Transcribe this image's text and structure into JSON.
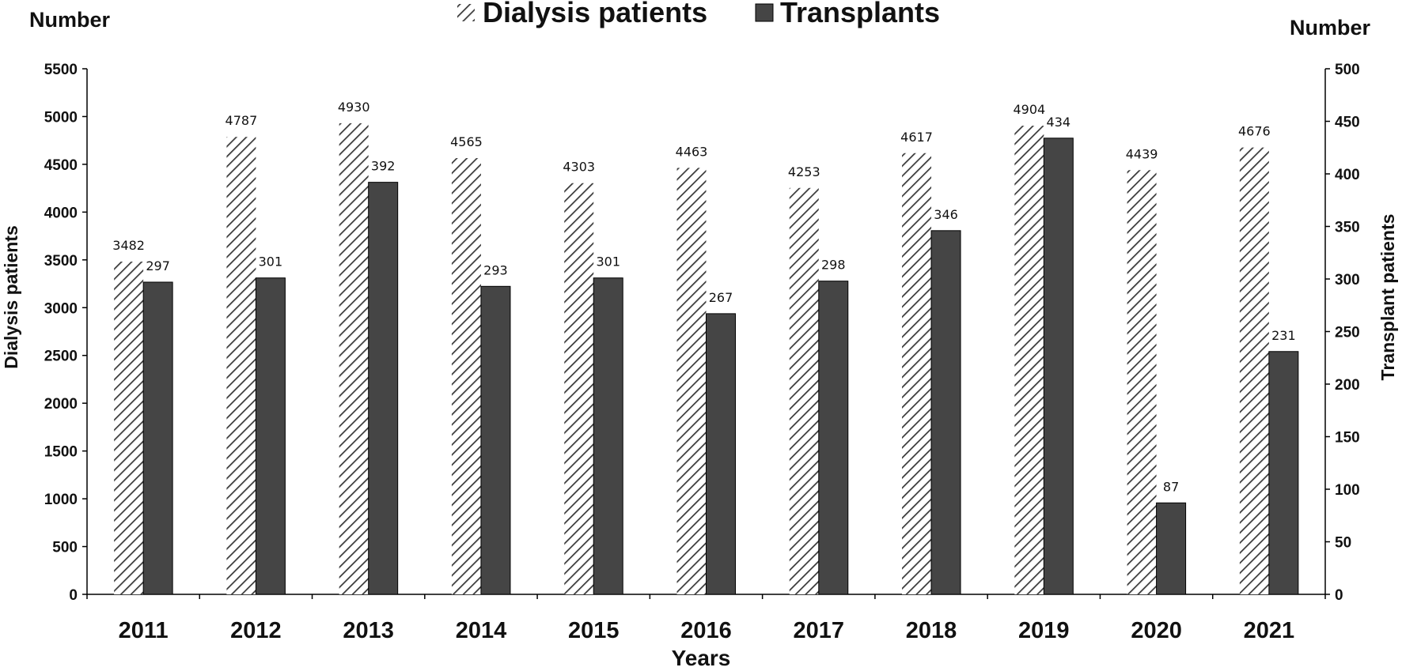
{
  "chart_data": {
    "type": "bar",
    "categories": [
      "2011",
      "2012",
      "2013",
      "2014",
      "2015",
      "2016",
      "2017",
      "2018",
      "2019",
      "2020",
      "2021"
    ],
    "series": [
      {
        "name": "Dialysis patients",
        "axis": "left",
        "pattern": "hatched",
        "values": [
          3482,
          4787,
          4930,
          4565,
          4303,
          4463,
          4253,
          4617,
          4904,
          4439,
          4676
        ]
      },
      {
        "name": "Transplants",
        "axis": "right",
        "pattern": "solid",
        "values": [
          297,
          301,
          392,
          293,
          301,
          267,
          298,
          346,
          434,
          87,
          231
        ]
      }
    ],
    "data_labels_left": [
      "3482",
      "4787",
      "4930",
      "4565",
      "4303",
      "4463",
      "4253",
      "4617",
      "4904",
      "4439",
      "4676"
    ],
    "data_labels_right": [
      "297",
      "301",
      "392",
      "293",
      "301",
      "267",
      "298",
      "346",
      "434",
      "87",
      "231"
    ],
    "left_corner_label": "Number",
    "right_corner_label": "Number",
    "ylabel": "Dialysis patients",
    "y2label": "Transplant patients",
    "xlabel": "Years",
    "ylim": [
      0,
      5500
    ],
    "y2lim": [
      0,
      500
    ],
    "yticks": [
      "0",
      "500",
      "1000",
      "1500",
      "2000",
      "2500",
      "3000",
      "3500",
      "4000",
      "4500",
      "5000",
      "5500"
    ],
    "y2ticks": [
      "0",
      "50",
      "100",
      "150",
      "200",
      "250",
      "300",
      "350",
      "400",
      "450",
      "500"
    ],
    "legend_position": "top-center",
    "colors": {
      "solid": "#454545",
      "hatch": "#3a3a3a",
      "axis": "#000000"
    }
  }
}
